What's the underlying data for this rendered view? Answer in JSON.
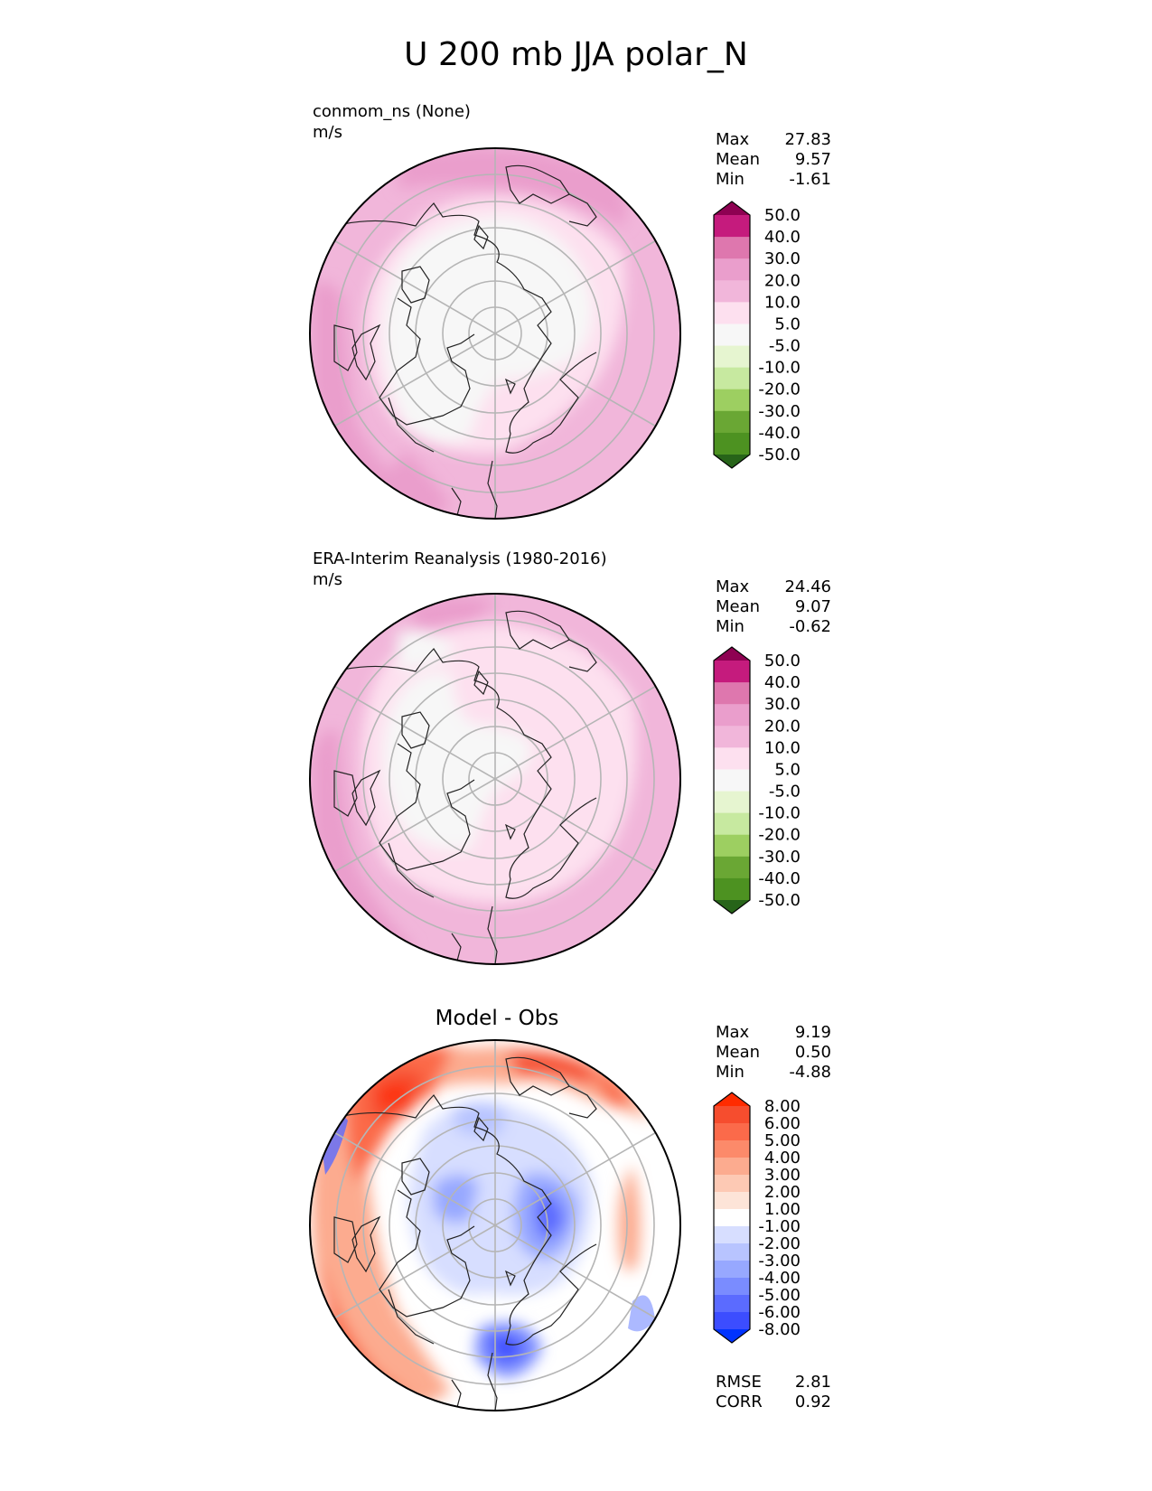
{
  "title": "U 200 mb JJA polar_N",
  "panels": [
    {
      "id": "test",
      "title_line1": "conmom_ns (None)",
      "title_line2": "m/s",
      "stats": {
        "max_label": "Max",
        "max": "27.83",
        "mean_label": "Mean",
        "mean": "9.57",
        "min_label": "Min",
        "min": "-1.61"
      },
      "colorbar_labels": [
        "50.0",
        "40.0",
        "30.0",
        "20.0",
        "10.0",
        "5.0",
        "-5.0",
        "-10.0",
        "-20.0",
        "-30.0",
        "-40.0",
        "-50.0"
      ],
      "colors": [
        "#8e0152",
        "#c51b7d",
        "#de77ae",
        "#ea9ecc",
        "#f1b6da",
        "#fde0ef",
        "#f7f7f7",
        "#e6f5d0",
        "#c7e9a0",
        "#9dcf61",
        "#6aa734",
        "#4d9221",
        "#276419"
      ]
    },
    {
      "id": "reference",
      "title_line1": "ERA-Interim Reanalysis (1980-2016)",
      "title_line2": "m/s",
      "stats": {
        "max_label": "Max",
        "max": "24.46",
        "mean_label": "Mean",
        "mean": "9.07",
        "min_label": "Min",
        "min": "-0.62"
      },
      "colorbar_labels": [
        "50.0",
        "40.0",
        "30.0",
        "20.0",
        "10.0",
        "5.0",
        "-5.0",
        "-10.0",
        "-20.0",
        "-30.0",
        "-40.0",
        "-50.0"
      ],
      "colors": [
        "#8e0152",
        "#c51b7d",
        "#de77ae",
        "#ea9ecc",
        "#f1b6da",
        "#fde0ef",
        "#f7f7f7",
        "#e6f5d0",
        "#c7e9a0",
        "#9dcf61",
        "#6aa734",
        "#4d9221",
        "#276419"
      ]
    },
    {
      "id": "difference",
      "title": "Model - Obs",
      "stats": {
        "max_label": "Max",
        "max": "9.19",
        "mean_label": "Mean",
        "mean": "0.50",
        "min_label": "Min",
        "min": "-4.88"
      },
      "colorbar_labels": [
        "8.00",
        "6.00",
        "5.00",
        "4.00",
        "3.00",
        "2.00",
        "1.00",
        "-1.00",
        "-2.00",
        "-3.00",
        "-4.00",
        "-5.00",
        "-6.00",
        "-8.00"
      ],
      "colors": [
        "#ff2b00",
        "#f64d2e",
        "#fb6a4a",
        "#fc8a6a",
        "#fcab8f",
        "#fdc9b4",
        "#fde4d8",
        "#ffffff",
        "#d7deff",
        "#b8c4ff",
        "#97a8ff",
        "#7a8cff",
        "#5b6bff",
        "#3c4dff",
        "#0033ff"
      ],
      "metrics": {
        "rmse_label": "RMSE",
        "rmse": "2.81",
        "corr_label": "CORR",
        "corr": "0.92"
      }
    }
  ]
}
